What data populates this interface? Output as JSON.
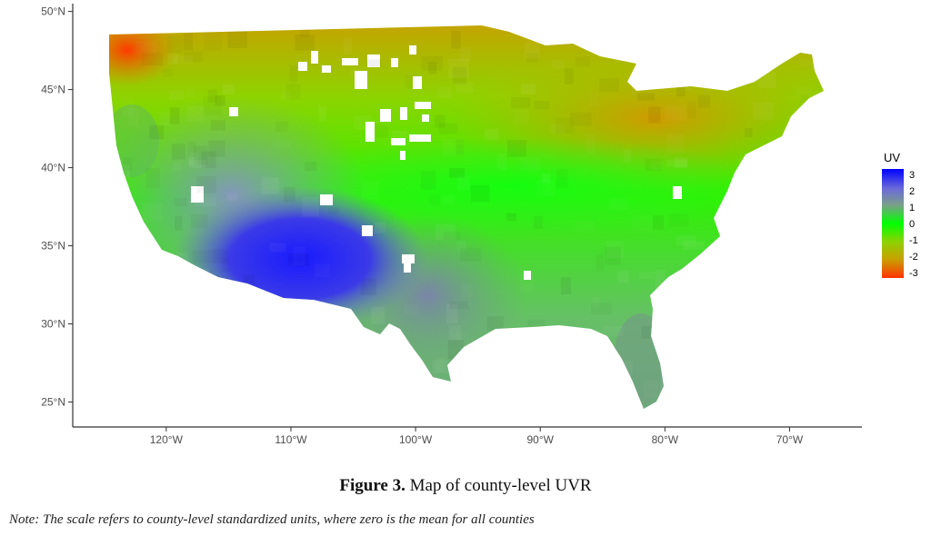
{
  "chart_data": {
    "type": "choropleth map",
    "region": "contiguous United States, county level",
    "x_axis": {
      "ticks": [
        {
          "value": -120,
          "label": "120°W"
        },
        {
          "value": -110,
          "label": "110°W"
        },
        {
          "value": -100,
          "label": "100°W"
        },
        {
          "value": -90,
          "label": "90°W"
        },
        {
          "value": -80,
          "label": "80°W"
        },
        {
          "value": -70,
          "label": "70°W"
        }
      ],
      "range": [
        -127.5,
        -64.2
      ]
    },
    "y_axis": {
      "ticks": [
        {
          "value": 25,
          "label": "25°N"
        },
        {
          "value": 30,
          "label": "30°N"
        },
        {
          "value": 35,
          "label": "35°N"
        },
        {
          "value": 40,
          "label": "40°N"
        },
        {
          "value": 45,
          "label": "45°N"
        },
        {
          "value": 50,
          "label": "50°N"
        }
      ],
      "range": [
        23.4,
        50.5
      ]
    },
    "legend": {
      "title": "UV",
      "placement": "right",
      "breaks": [
        3,
        2,
        1,
        0,
        -1,
        -2,
        -3
      ],
      "labels": [
        "3",
        "2",
        "1",
        "0",
        "-1",
        "-2",
        "-3"
      ],
      "colors": [
        "#0000ff",
        "#7878d8",
        "#7aaa7a",
        "#00ff00",
        "#80d000",
        "#c8a000",
        "#ff3c00"
      ]
    },
    "grid": false,
    "pattern": "highest UV in the Southwest (Arizona, New Mexico), moderate in the Southeast and California, lowest in the Pacific Northwest and Northeast; white gaps are counties without data"
  },
  "caption": {
    "figure_label": "Figure 3.",
    "title": "Map of county-level UVR"
  },
  "note": "Note:  The scale refers to county-level standardized units, where zero is the mean for all counties"
}
